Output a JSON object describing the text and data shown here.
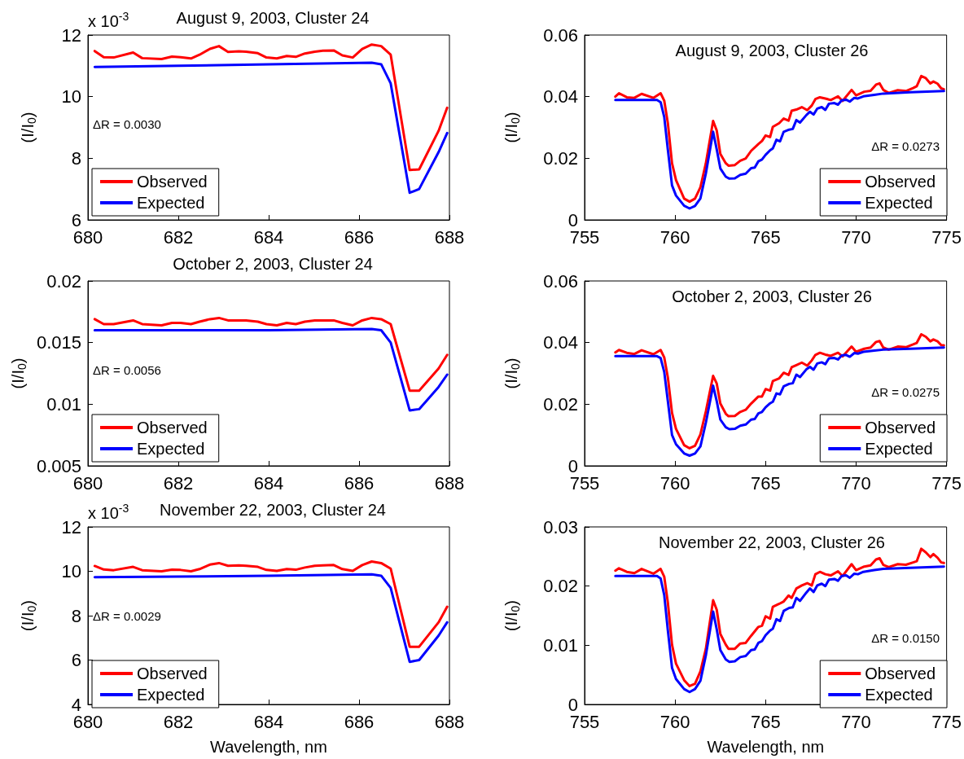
{
  "chart_data": [
    {
      "type": "line",
      "title": "August 9, 2003, Cluster 24",
      "ylabel": "(I/I$_{0}$)",
      "annotations": [
        "x 10$^{-3}$",
        "ΔR = 0.0030"
      ],
      "xlim": [
        680,
        688
      ],
      "xticks": [
        680,
        682,
        684,
        686,
        688
      ],
      "ylim": [
        6,
        12
      ],
      "yticks": [
        6,
        8,
        10,
        12
      ],
      "grid": false,
      "legend": "bottom left",
      "marker": "none",
      "line_style": "solid",
      "series": [
        {
          "name": "Observed",
          "color": "#ff0000",
          "x": [
            680.15,
            680.35,
            680.57,
            681.0,
            681.2,
            681.63,
            681.86,
            682.05,
            682.28,
            682.47,
            682.7,
            682.9,
            683.1,
            683.34,
            683.5,
            683.76,
            683.95,
            684.18,
            684.4,
            684.6,
            684.8,
            685.02,
            685.2,
            685.44,
            685.63,
            685.86,
            686.07,
            686.28,
            686.49,
            686.7,
            687.12,
            687.33,
            687.76,
            687.95
          ],
          "values": [
            11.48,
            11.28,
            11.27,
            11.43,
            11.25,
            11.22,
            11.3,
            11.28,
            11.24,
            11.36,
            11.55,
            11.64,
            11.45,
            11.47,
            11.46,
            11.41,
            11.27,
            11.24,
            11.32,
            11.29,
            11.4,
            11.46,
            11.49,
            11.5,
            11.34,
            11.27,
            11.55,
            11.69,
            11.64,
            11.36,
            7.62,
            7.64,
            8.89,
            9.64
          ]
        },
        {
          "name": "Expected",
          "color": "#0000ff",
          "x": [
            680.15,
            682,
            684,
            686.28,
            686.49,
            686.7,
            687.12,
            687.33,
            687.76,
            687.95
          ],
          "values": [
            10.96,
            11.0,
            11.05,
            11.1,
            11.05,
            10.43,
            6.88,
            7.0,
            8.2,
            8.82
          ]
        }
      ]
    },
    {
      "type": "line",
      "title": "August 9, 2003, Cluster 26",
      "ylabel": "(I/I$_{0}$)",
      "annotations": [
        "ΔR = 0.0273"
      ],
      "xlim": [
        755,
        775
      ],
      "xticks": [
        755,
        760,
        765,
        770,
        775
      ],
      "ylim": [
        0,
        0.06
      ],
      "yticks": [
        0,
        0.02,
        0.04,
        0.06
      ],
      "grid": false,
      "legend": "bottom right",
      "marker": "none",
      "line_style": "solid",
      "series": [
        {
          "name": "Observed",
          "color": "#ff0000",
          "x": [
            756.7,
            756.9,
            757.33,
            757.75,
            758.15,
            758.8,
            759.2,
            759.4,
            759.6,
            759.83,
            760.05,
            760.5,
            760.8,
            761.1,
            761.4,
            761.7,
            762.1,
            762.3,
            762.5,
            762.8,
            762.95,
            763.3,
            763.6,
            763.9,
            764.2,
            764.6,
            764.8,
            765.0,
            765.25,
            765.4,
            765.75,
            766.0,
            766.27,
            766.44,
            766.7,
            767.0,
            767.3,
            767.55,
            767.75,
            768.0,
            768.3,
            768.6,
            769.0,
            769.25,
            769.75,
            770.0,
            770.45,
            770.8,
            771.1,
            771.3,
            771.5,
            771.8,
            772.3,
            772.75,
            773.15,
            773.35,
            773.6,
            773.85,
            774.1,
            774.27,
            774.5,
            774.7,
            774.85
          ],
          "values": [
            0.04,
            0.0411,
            0.0398,
            0.0396,
            0.0409,
            0.0396,
            0.0411,
            0.0387,
            0.0314,
            0.0184,
            0.0129,
            0.0069,
            0.0059,
            0.0069,
            0.0106,
            0.0184,
            0.0321,
            0.029,
            0.0214,
            0.0184,
            0.0176,
            0.0178,
            0.0192,
            0.0199,
            0.0224,
            0.0246,
            0.0256,
            0.0274,
            0.0269,
            0.0302,
            0.0314,
            0.0329,
            0.0322,
            0.0354,
            0.0358,
            0.0366,
            0.0356,
            0.0371,
            0.0392,
            0.0398,
            0.0394,
            0.0389,
            0.0401,
            0.0386,
            0.0422,
            0.0404,
            0.0416,
            0.0419,
            0.0439,
            0.0443,
            0.0422,
            0.0412,
            0.0421,
            0.0418,
            0.0428,
            0.0434,
            0.0467,
            0.046,
            0.0443,
            0.0449,
            0.0442,
            0.0427,
            0.0424
          ]
        },
        {
          "name": "Expected",
          "color": "#0000ff",
          "x": [
            756.7,
            759.0,
            759.2,
            759.4,
            759.6,
            759.83,
            760.05,
            760.5,
            760.8,
            761.1,
            761.4,
            761.7,
            762.1,
            762.3,
            762.5,
            762.8,
            763.0,
            763.3,
            763.6,
            763.9,
            764.2,
            764.4,
            764.6,
            764.8,
            765.0,
            765.25,
            765.4,
            765.6,
            765.8,
            766.0,
            766.3,
            766.5,
            766.7,
            766.9,
            767.25,
            767.45,
            767.65,
            767.85,
            768.1,
            768.3,
            768.5,
            768.8,
            769.0,
            769.2,
            769.45,
            769.65,
            769.9,
            770.1,
            770.4,
            771.0,
            771.5,
            773,
            774.85
          ],
          "values": [
            0.0389,
            0.0389,
            0.0382,
            0.0334,
            0.0228,
            0.0112,
            0.0079,
            0.0046,
            0.0037,
            0.0045,
            0.007,
            0.0151,
            0.0286,
            0.0229,
            0.0167,
            0.014,
            0.0134,
            0.0135,
            0.0146,
            0.015,
            0.0168,
            0.017,
            0.019,
            0.0196,
            0.0211,
            0.0226,
            0.0232,
            0.026,
            0.0255,
            0.0286,
            0.0293,
            0.0295,
            0.0324,
            0.0316,
            0.034,
            0.0351,
            0.0342,
            0.0361,
            0.0366,
            0.0357,
            0.0377,
            0.0379,
            0.0374,
            0.0388,
            0.039,
            0.0384,
            0.0396,
            0.0394,
            0.0401,
            0.0406,
            0.041,
            0.0414,
            0.0418
          ]
        }
      ]
    },
    {
      "type": "line",
      "title": "October 2, 2003, Cluster 24",
      "ylabel": "(I/I$_{0}$)",
      "annotations": [
        "ΔR = 0.0056"
      ],
      "xlim": [
        680,
        688
      ],
      "xticks": [
        680,
        682,
        684,
        686,
        688
      ],
      "ylim": [
        0.005,
        0.02
      ],
      "yticks": [
        0.005,
        0.01,
        0.015,
        0.02
      ],
      "grid": false,
      "legend": "bottom left",
      "marker": "none",
      "line_style": "solid",
      "series": [
        {
          "name": "Observed",
          "color": "#ff0000",
          "x": [
            680.15,
            680.35,
            680.57,
            681.0,
            681.2,
            681.63,
            681.86,
            682.05,
            682.28,
            682.47,
            682.7,
            682.9,
            683.1,
            683.34,
            683.5,
            683.76,
            683.95,
            684.18,
            684.4,
            684.6,
            684.8,
            685.02,
            685.2,
            685.44,
            685.63,
            685.86,
            686.07,
            686.28,
            686.49,
            686.7,
            687.12,
            687.33,
            687.76,
            687.95
          ],
          "values": [
            0.0169,
            0.0165,
            0.0165,
            0.0168,
            0.0165,
            0.0164,
            0.0166,
            0.0166,
            0.0165,
            0.0167,
            0.0169,
            0.017,
            0.0168,
            0.0168,
            0.0168,
            0.0167,
            0.0165,
            0.0164,
            0.0166,
            0.0165,
            0.0167,
            0.0168,
            0.0168,
            0.0168,
            0.0166,
            0.0164,
            0.0168,
            0.017,
            0.0169,
            0.0165,
            0.0111,
            0.0111,
            0.0129,
            0.014
          ]
        },
        {
          "name": "Expected",
          "color": "#0000ff",
          "x": [
            680.15,
            682,
            684,
            686.28,
            686.49,
            686.7,
            687.12,
            687.33,
            687.76,
            687.95
          ],
          "values": [
            0.016,
            0.016,
            0.016,
            0.0161,
            0.016,
            0.015,
            0.0095,
            0.0096,
            0.0114,
            0.0124
          ]
        }
      ]
    },
    {
      "type": "line",
      "title": "October 2, 2003, Cluster 26",
      "ylabel": "(I/I$_{0}$)",
      "annotations": [
        "ΔR = 0.0275"
      ],
      "xlim": [
        755,
        775
      ],
      "xticks": [
        755,
        760,
        765,
        770,
        775
      ],
      "ylim": [
        0,
        0.06
      ],
      "yticks": [
        0,
        0.02,
        0.04,
        0.06
      ],
      "grid": false,
      "legend": "bottom right",
      "marker": "none",
      "line_style": "solid",
      "series": [
        {
          "name": "Observed",
          "color": "#ff0000",
          "x": [
            756.7,
            756.9,
            757.33,
            757.75,
            758.15,
            758.8,
            759.2,
            759.4,
            759.6,
            759.83,
            760.05,
            760.5,
            760.8,
            761.1,
            761.4,
            761.7,
            762.1,
            762.3,
            762.5,
            762.8,
            762.95,
            763.3,
            763.6,
            763.9,
            764.2,
            764.6,
            764.8,
            765.0,
            765.25,
            765.4,
            765.75,
            766.0,
            766.27,
            766.44,
            766.7,
            767.0,
            767.3,
            767.55,
            767.75,
            768.0,
            768.3,
            768.6,
            769.0,
            769.25,
            769.75,
            770.0,
            770.45,
            770.8,
            771.1,
            771.3,
            771.5,
            771.8,
            772.3,
            772.75,
            773.15,
            773.35,
            773.6,
            773.85,
            774.1,
            774.27,
            774.5,
            774.7,
            774.85
          ],
          "values": [
            0.0368,
            0.0376,
            0.0367,
            0.0363,
            0.0375,
            0.0362,
            0.0376,
            0.0352,
            0.0287,
            0.0172,
            0.012,
            0.0067,
            0.0057,
            0.0065,
            0.0102,
            0.0177,
            0.0292,
            0.0267,
            0.0202,
            0.0169,
            0.0161,
            0.0162,
            0.0175,
            0.0182,
            0.0202,
            0.0225,
            0.0225,
            0.0249,
            0.0244,
            0.0275,
            0.0284,
            0.0302,
            0.0295,
            0.032,
            0.0327,
            0.0335,
            0.0325,
            0.0342,
            0.036,
            0.0367,
            0.0361,
            0.0357,
            0.0367,
            0.0355,
            0.0387,
            0.037,
            0.038,
            0.0384,
            0.0402,
            0.0405,
            0.0384,
            0.0377,
            0.0387,
            0.0385,
            0.0394,
            0.0399,
            0.0427,
            0.0419,
            0.0404,
            0.041,
            0.0404,
            0.0392,
            0.0391
          ]
        },
        {
          "name": "Expected",
          "color": "#0000ff",
          "x": [
            756.7,
            759.0,
            759.2,
            759.4,
            759.6,
            759.83,
            760.05,
            760.5,
            760.8,
            761.1,
            761.4,
            761.7,
            762.1,
            762.3,
            762.5,
            762.8,
            763.0,
            763.3,
            763.6,
            763.9,
            764.2,
            764.4,
            764.6,
            764.8,
            765.0,
            765.25,
            765.4,
            765.6,
            765.8,
            766.0,
            766.3,
            766.5,
            766.7,
            766.9,
            767.25,
            767.45,
            767.65,
            767.85,
            768.1,
            768.3,
            768.5,
            768.8,
            769.0,
            769.2,
            769.45,
            769.65,
            769.9,
            770.1,
            770.4,
            771.0,
            771.5,
            773,
            774.85
          ],
          "values": [
            0.0356,
            0.0356,
            0.035,
            0.0305,
            0.021,
            0.01,
            0.007,
            0.004,
            0.0033,
            0.004,
            0.0063,
            0.014,
            0.026,
            0.021,
            0.015,
            0.0125,
            0.0119,
            0.012,
            0.013,
            0.0134,
            0.015,
            0.0152,
            0.017,
            0.0175,
            0.019,
            0.0203,
            0.0208,
            0.0235,
            0.0232,
            0.0258,
            0.0266,
            0.0268,
            0.0296,
            0.0288,
            0.0313,
            0.0321,
            0.0312,
            0.0332,
            0.0336,
            0.033,
            0.0349,
            0.035,
            0.0345,
            0.0358,
            0.036,
            0.0354,
            0.0366,
            0.0364,
            0.037,
            0.0374,
            0.0377,
            0.038,
            0.0384
          ]
        }
      ]
    },
    {
      "type": "line",
      "title": "November 22, 2003, Cluster 24",
      "xlabel": "Wavelength, nm",
      "ylabel": "(I/I$_{0}$)",
      "annotations": [
        "x 10$^{-3}$",
        "ΔR = 0.0029"
      ],
      "xlim": [
        680,
        688
      ],
      "xticks": [
        680,
        682,
        684,
        686,
        688
      ],
      "ylim": [
        4,
        12
      ],
      "yticks": [
        4,
        6,
        8,
        10,
        12
      ],
      "grid": false,
      "legend": "bottom left",
      "marker": "none",
      "line_style": "solid",
      "series": [
        {
          "name": "Observed",
          "color": "#ff0000",
          "x": [
            680.15,
            680.35,
            680.57,
            681.0,
            681.2,
            681.63,
            681.86,
            682.05,
            682.28,
            682.47,
            682.7,
            682.9,
            683.1,
            683.34,
            683.5,
            683.76,
            683.95,
            684.18,
            684.4,
            684.6,
            684.8,
            685.02,
            685.2,
            685.44,
            685.63,
            685.86,
            686.07,
            686.28,
            686.49,
            686.7,
            687.12,
            687.33,
            687.76,
            687.95
          ],
          "values": [
            10.24,
            10.08,
            10.05,
            10.2,
            10.05,
            10.0,
            10.07,
            10.06,
            10.0,
            10.1,
            10.3,
            10.37,
            10.25,
            10.27,
            10.25,
            10.2,
            10.06,
            10.02,
            10.1,
            10.07,
            10.17,
            10.25,
            10.27,
            10.28,
            10.1,
            10.02,
            10.28,
            10.44,
            10.37,
            10.12,
            6.6,
            6.6,
            7.7,
            8.4
          ]
        },
        {
          "name": "Expected",
          "color": "#0000ff",
          "x": [
            680.15,
            682,
            684,
            686.28,
            686.49,
            686.7,
            687.12,
            687.33,
            687.76,
            687.95
          ],
          "values": [
            9.73,
            9.76,
            9.8,
            9.86,
            9.8,
            9.25,
            5.92,
            6.0,
            7.1,
            7.7
          ]
        }
      ]
    },
    {
      "type": "line",
      "title": "November 22, 2003, Cluster 26",
      "xlabel": "Wavelength, nm",
      "ylabel": "(I/I$_{0}$)",
      "annotations": [
        "ΔR = 0.0150"
      ],
      "xlim": [
        755,
        775
      ],
      "xticks": [
        755,
        760,
        765,
        770,
        775
      ],
      "ylim": [
        0,
        0.03
      ],
      "yticks": [
        0,
        0.01,
        0.02,
        0.03
      ],
      "grid": false,
      "legend": "bottom right",
      "marker": "none",
      "line_style": "solid",
      "series": [
        {
          "name": "Observed",
          "color": "#ff0000",
          "x": [
            756.7,
            756.9,
            757.33,
            757.75,
            758.15,
            758.8,
            759.2,
            759.4,
            759.6,
            759.83,
            760.05,
            760.5,
            760.8,
            761.1,
            761.4,
            761.7,
            762.1,
            762.3,
            762.5,
            762.8,
            762.95,
            763.3,
            763.6,
            763.9,
            764.2,
            764.6,
            764.8,
            765.0,
            765.25,
            765.4,
            765.75,
            766.0,
            766.27,
            766.44,
            766.7,
            767.0,
            767.3,
            767.55,
            767.75,
            768.0,
            768.3,
            768.6,
            769.0,
            769.25,
            769.75,
            770.0,
            770.45,
            770.8,
            771.1,
            771.3,
            771.5,
            771.8,
            772.3,
            772.75,
            773.15,
            773.35,
            773.6,
            773.85,
            774.1,
            774.27,
            774.5,
            774.7,
            774.85
          ],
          "values": [
            0.0226,
            0.023,
            0.0224,
            0.0222,
            0.0229,
            0.0221,
            0.0229,
            0.0216,
            0.0172,
            0.0101,
            0.0069,
            0.0041,
            0.0031,
            0.0035,
            0.0056,
            0.0094,
            0.0176,
            0.016,
            0.0119,
            0.0101,
            0.0094,
            0.0094,
            0.0103,
            0.0104,
            0.0116,
            0.0131,
            0.0133,
            0.0149,
            0.0145,
            0.0165,
            0.017,
            0.0174,
            0.0184,
            0.018,
            0.0196,
            0.0201,
            0.0205,
            0.0201,
            0.022,
            0.0224,
            0.022,
            0.0218,
            0.0225,
            0.0217,
            0.0237,
            0.0227,
            0.0233,
            0.0235,
            0.0245,
            0.0247,
            0.0236,
            0.0232,
            0.0237,
            0.0236,
            0.024,
            0.0242,
            0.0263,
            0.0257,
            0.0249,
            0.0254,
            0.0248,
            0.024,
            0.0239
          ]
        },
        {
          "name": "Expected",
          "color": "#0000ff",
          "x": [
            756.7,
            759.0,
            759.2,
            759.4,
            759.6,
            759.83,
            760.05,
            760.5,
            760.8,
            761.1,
            761.4,
            761.7,
            762.1,
            762.3,
            762.5,
            762.8,
            763.0,
            763.3,
            763.6,
            763.9,
            764.2,
            764.4,
            764.6,
            764.8,
            765.0,
            765.25,
            765.4,
            765.6,
            765.8,
            766.0,
            766.3,
            766.5,
            766.7,
            766.9,
            767.25,
            767.45,
            767.65,
            767.85,
            768.1,
            768.3,
            768.5,
            768.8,
            769.0,
            769.2,
            769.45,
            769.65,
            769.9,
            770.1,
            770.4,
            771.0,
            771.5,
            773,
            774.85
          ],
          "values": [
            0.0217,
            0.0217,
            0.0213,
            0.0185,
            0.0125,
            0.0062,
            0.0043,
            0.0026,
            0.0021,
            0.0026,
            0.004,
            0.0083,
            0.0157,
            0.0127,
            0.0092,
            0.0076,
            0.0072,
            0.0073,
            0.008,
            0.0082,
            0.0092,
            0.0093,
            0.0104,
            0.0107,
            0.0117,
            0.0125,
            0.0128,
            0.0144,
            0.0141,
            0.0158,
            0.0163,
            0.0164,
            0.018,
            0.0175,
            0.0189,
            0.0196,
            0.019,
            0.0201,
            0.0204,
            0.02,
            0.0211,
            0.0212,
            0.0209,
            0.0217,
            0.0218,
            0.0214,
            0.0221,
            0.022,
            0.0224,
            0.0227,
            0.0229,
            0.0231,
            0.0233
          ]
        }
      ]
    }
  ]
}
